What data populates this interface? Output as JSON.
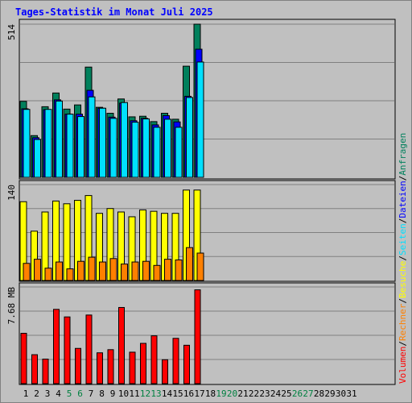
{
  "title": "Tages-Statistik im Monat Juli 2025",
  "colors": {
    "background": "#ffffff",
    "panel": "#c0c0c0",
    "title_text": "#0000ff",
    "grid": "#808080",
    "anfragen": "#00805c",
    "dateien": "#0000ff",
    "seiten": "#00e0ff",
    "besuche": "#ffff00",
    "rechner": "#ff8000",
    "volumen": "#ff0000",
    "weekend_label": "#008040"
  },
  "legend": {
    "separator": "/",
    "items": [
      {
        "label": "Volumen",
        "color": "#ff0000"
      },
      {
        "label": "Rechner",
        "color": "#ff8000"
      },
      {
        "label": "Besuche",
        "color": "#ffff00"
      },
      {
        "label": "Seiten",
        "color": "#00e0ff"
      },
      {
        "label": "Dateien",
        "color": "#0000ff"
      },
      {
        "label": "Anfragen",
        "color": "#00805c"
      }
    ]
  },
  "chart_data": {
    "type": "bar",
    "title": "Tages-Statistik im Monat Juli 2025",
    "grid": true,
    "legend_placement": "right (vertical)",
    "x": {
      "categories": [
        "1",
        "2",
        "3",
        "4",
        "5",
        "6",
        "7",
        "8",
        "9",
        "10",
        "11",
        "12",
        "13",
        "14",
        "15",
        "16",
        "17",
        "18",
        "19",
        "20",
        "21",
        "22",
        "23",
        "24",
        "25",
        "26",
        "27",
        "28",
        "29",
        "30",
        "31"
      ],
      "weekend_days": [
        "5",
        "6",
        "12",
        "13",
        "19",
        "20",
        "26",
        "27"
      ]
    },
    "panels": [
      {
        "id": "requests",
        "y_max_label": "514",
        "ylim": [
          0,
          514
        ],
        "series": [
          {
            "name": "Anfragen",
            "color": "#00805c",
            "values": [
              255,
              140,
              237,
              283,
              229,
              243,
              370,
              235,
              215,
              263,
              203,
              205,
              187,
              215,
              195,
              373,
              514,
              null,
              null,
              null,
              null,
              null,
              null,
              null,
              null,
              null,
              null,
              null,
              null,
              null,
              null
            ]
          },
          {
            "name": "Dateien",
            "color": "#0000ff",
            "values": [
              230,
              133,
              227,
              260,
              212,
              212,
              292,
              232,
              202,
              249,
              190,
              198,
              176,
              207,
              186,
              272,
              430,
              null,
              null,
              null,
              null,
              null,
              null,
              null,
              null,
              null,
              null,
              null,
              null,
              null,
              null
            ]
          },
          {
            "name": "Seiten",
            "color": "#00e0ff",
            "values": [
              228,
              127,
              228,
              256,
              212,
              204,
              270,
              232,
              198,
              251,
              185,
              196,
              168,
              195,
              168,
              268,
              387,
              null,
              null,
              null,
              null,
              null,
              null,
              null,
              null,
              null,
              null,
              null,
              null,
              null,
              null
            ]
          }
        ]
      },
      {
        "id": "visits",
        "y_max_label": "140",
        "ylim": [
          0,
          140
        ],
        "series": [
          {
            "name": "Besuche",
            "color": "#ffff00",
            "values": [
              115,
              72,
              100,
              116,
              112,
              117,
              124,
              98,
              105,
              100,
              93,
              103,
              101,
              98,
              98,
              132,
              132,
              null,
              null,
              null,
              null,
              null,
              null,
              null,
              null,
              null,
              null,
              null,
              null,
              null,
              null
            ]
          },
          {
            "name": "Rechner",
            "color": "#ff8000",
            "values": [
              25,
              31,
              18,
              27,
              17,
              28,
              34,
              27,
              32,
              24,
              27,
              28,
              22,
              31,
              30,
              48,
              40,
              null,
              null,
              null,
              null,
              null,
              null,
              null,
              null,
              null,
              null,
              null,
              null,
              null,
              null
            ]
          }
        ]
      },
      {
        "id": "volume",
        "y_max_label": "7.68 MB",
        "ylim": [
          0,
          7.68
        ],
        "series": [
          {
            "name": "Volumen",
            "color": "#ff0000",
            "values": [
              4.0,
              2.3,
              1.95,
              5.9,
              5.3,
              2.8,
              5.45,
              2.45,
              2.7,
              6.05,
              2.5,
              3.2,
              3.8,
              1.9,
              3.6,
              3.05,
              7.45,
              null,
              null,
              null,
              null,
              null,
              null,
              null,
              null,
              null,
              null,
              null,
              null,
              null,
              null
            ]
          }
        ]
      }
    ]
  }
}
